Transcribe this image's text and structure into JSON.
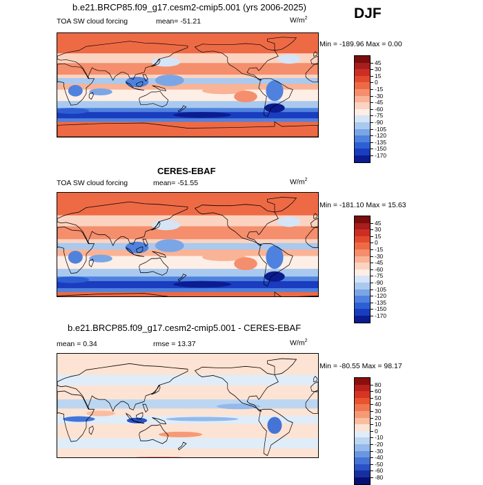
{
  "season": "DJF",
  "panels": [
    {
      "title": "b.e21.BRCP85.f09_g17.cesm2-cmip5.001 (yrs 2006-2025)",
      "left_label": "TOA SW cloud forcing",
      "mean_label": "mean=  -51.21",
      "units": "W/m",
      "units_sup": "2",
      "minmax": "Min = -189.96 Max =    0.00",
      "levels": [
        "45",
        "30",
        "15",
        "0",
        "-15",
        "-30",
        "-45",
        "-60",
        "-75",
        "-90",
        "-105",
        "-120",
        "-135",
        "-150",
        "-170"
      ],
      "colors": [
        "#7a0d0d",
        "#a81d1d",
        "#cc2e25",
        "#e24a2e",
        "#ee6a45",
        "#f58e6c",
        "#f9b396",
        "#fbd3c0",
        "#fdeee6",
        "#d5e4f6",
        "#a9c9ef",
        "#7aa6e6",
        "#4f82de",
        "#2d5fd4",
        "#1a3cbf",
        "#0a1c8f"
      ],
      "field": "cloud"
    },
    {
      "title": "CERES-EBAF",
      "left_label": "TOA SW cloud forcing",
      "mean_label": "mean=  -51.55",
      "units": "W/m",
      "units_sup": "2",
      "minmax": "Min = -181.10 Max =   15.63",
      "levels": [
        "45",
        "30",
        "15",
        "0",
        "-15",
        "-30",
        "-45",
        "-60",
        "-75",
        "-90",
        "-105",
        "-120",
        "-135",
        "-150",
        "-170"
      ],
      "colors": [
        "#7a0d0d",
        "#a81d1d",
        "#cc2e25",
        "#e24a2e",
        "#ee6a45",
        "#f58e6c",
        "#f9b396",
        "#fbd3c0",
        "#fdeee6",
        "#d5e4f6",
        "#a9c9ef",
        "#7aa6e6",
        "#4f82de",
        "#2d5fd4",
        "#1a3cbf",
        "#0a1c8f"
      ],
      "field": "cloud"
    },
    {
      "title": "b.e21.BRCP85.f09_g17.cesm2-cmip5.001 - CERES-EBAF",
      "left_label": "mean =    0.34",
      "mean_label": "rmse =   13.37",
      "units": "W/m",
      "units_sup": "2",
      "minmax": "Min = -80.55 Max =  98.17",
      "levels": [
        "80",
        "60",
        "50",
        "40",
        "30",
        "20",
        "10",
        "0",
        "-10",
        "-20",
        "-30",
        "-40",
        "-50",
        "-60",
        "-80"
      ],
      "colors": [
        "#8a0e0e",
        "#b8201c",
        "#d63424",
        "#e8542e",
        "#f07650",
        "#f59a77",
        "#f9bda0",
        "#fde3d3",
        "#e0ecf8",
        "#bcd6f1",
        "#94b9ea",
        "#6a97e0",
        "#4574d6",
        "#2a51c5",
        "#16309f",
        "#080f72"
      ],
      "field": "diff"
    }
  ]
}
